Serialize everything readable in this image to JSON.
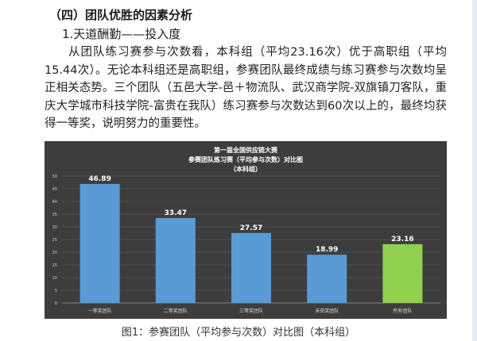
{
  "heading": "（四）团队优胜的因素分析",
  "subheading": "1.天道酬勤——投入度",
  "paragraphs": [
    "从团队练习赛参与次数看，本科组（平均23.16次）优于高职组（平均15.44次）。无论本科组还是高职组，参赛团队最终成绩与练习赛参与次数均呈正相关态势。三个团队（五邑大学-邑＋物流队、武汉商学院-双旗镇刀客队，重庆大学城市科技学院-富贵在我队）练习赛参与次数达到60次以上的，最终均获得一等奖，说明努力的重要性。"
  ],
  "caption": "图1：参赛团队（平均参与次数）对比图（本科组）",
  "chart_data": {
    "type": "bar",
    "title": "第一届全国供应链大赛",
    "subtitle": "参赛团队练习赛（平均参与次数）对比图",
    "subtitle2": "（本科组）",
    "categories": [
      "一等奖团队",
      "二等奖团队",
      "三等奖团队",
      "未获奖团队",
      "所有团队"
    ],
    "values": [
      46.89,
      33.47,
      27.57,
      18.99,
      23.16
    ],
    "value_labels": [
      "46.89",
      "33.47",
      "27.57",
      "18.99",
      "23.16"
    ],
    "ylim": [
      0,
      50
    ],
    "yticks": [
      "0",
      "5",
      "10",
      "15",
      "20",
      "25",
      "30",
      "35",
      "40",
      "45",
      "50"
    ],
    "ytick_values": [
      0,
      5,
      10,
      15,
      20,
      25,
      30,
      35,
      40,
      45,
      50
    ],
    "grid": true,
    "bar_colors": [
      "#5b9bd5",
      "#5b9bd5",
      "#5b9bd5",
      "#5b9bd5",
      "#92d050"
    ],
    "background": "#3d3d3d",
    "xlabel": "",
    "ylabel": ""
  }
}
